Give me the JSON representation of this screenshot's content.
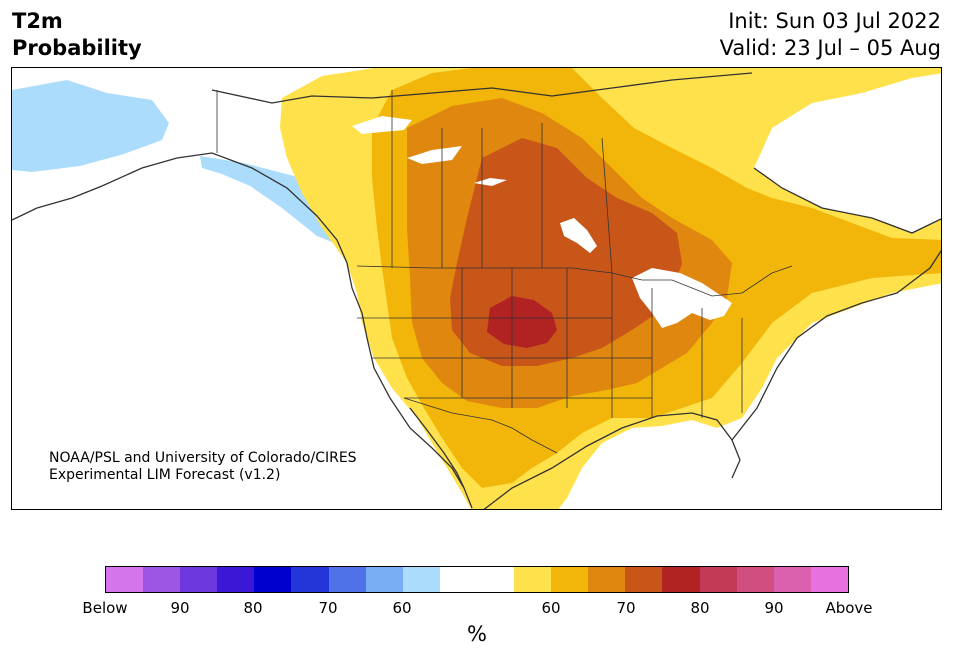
{
  "header": {
    "title_line1": "T2m",
    "title_line2": "Probability",
    "init": "Init: Sun 03 Jul 2022",
    "valid": "Valid: 23 Jul – 05 Aug"
  },
  "credit": {
    "line1": "NOAA/PSL and University of Colorado/CIRES",
    "line2": "Experimental LIM Forecast (v1.2)"
  },
  "colorbar": {
    "colors": [
      "#d575ea",
      "#9c56e3",
      "#6c37dc",
      "#3a18d6",
      "#0000cc",
      "#2436d8",
      "#4f72e8",
      "#78aef3",
      "#acdcfc",
      "#ffffff",
      "#ffffff",
      "#ffe14b",
      "#f2b60a",
      "#e0870f",
      "#c95619",
      "#b12222",
      "#c33a56",
      "#d14f7f",
      "#db60ae",
      "#e671df"
    ],
    "labels": [
      "Below",
      "90",
      "80",
      "70",
      "60",
      "60",
      "70",
      "80",
      "90",
      "Above"
    ],
    "unit": "%"
  },
  "map": {
    "colors": {
      "ocean": "#ffffff",
      "below_60": "#acdcfc",
      "above_60": "#ffe14b",
      "above_65": "#f2b60a",
      "above_70": "#e0870f",
      "above_75": "#c95619",
      "above_80": "#b12222",
      "coast": "#333333"
    }
  }
}
